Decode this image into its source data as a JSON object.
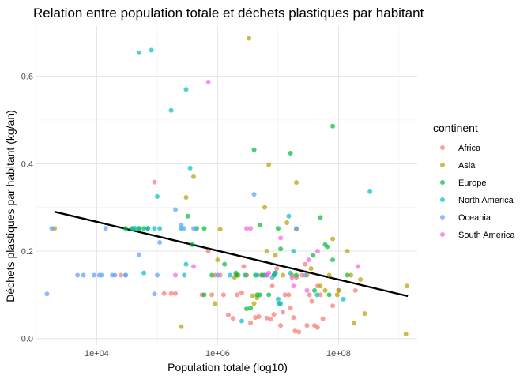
{
  "chart_data": {
    "type": "scatter",
    "title": "Relation entre population totale et déchets plastiques par habitant",
    "xlabel": "Population totale (log10)",
    "ylabel": "Déchets plastiques par habitant (kg/an)",
    "x_scale": "log10",
    "xlim": [
      1000,
      2000000000
    ],
    "ylim": [
      -0.015,
      0.715
    ],
    "x_ticks": [
      10000,
      1000000,
      100000000
    ],
    "x_tick_labels": [
      "1e+04",
      "1e+06",
      "1e+08"
    ],
    "y_ticks": [
      0.0,
      0.2,
      0.4,
      0.6
    ],
    "y_tick_labels": [
      "0.0",
      "0.2",
      "0.4",
      "0.6"
    ],
    "grid": true,
    "legend": {
      "title": "continent",
      "position": "right"
    },
    "series": [
      {
        "name": "Africa",
        "color": "#F8766D",
        "points": [
          [
            90000,
            0.358
          ],
          [
            130000,
            0.103
          ],
          [
            170000,
            0.103
          ],
          [
            550000,
            0.1
          ],
          [
            800000,
            0.1
          ],
          [
            1100000,
            0.145
          ],
          [
            1250000,
            0.1
          ],
          [
            1500000,
            0.054
          ],
          [
            1800000,
            0.046
          ],
          [
            2000000,
            0.145
          ],
          [
            2100000,
            0.1
          ],
          [
            2500000,
            0.105
          ],
          [
            3000000,
            0.145
          ],
          [
            3500000,
            0.036
          ],
          [
            4200000,
            0.048
          ],
          [
            4800000,
            0.05
          ],
          [
            5200000,
            0.145
          ],
          [
            6000000,
            0.145
          ],
          [
            6500000,
            0.047
          ],
          [
            7500000,
            0.044
          ],
          [
            8500000,
            0.055
          ],
          [
            9500000,
            0.16
          ],
          [
            11000000,
            0.03
          ],
          [
            12000000,
            0.06
          ],
          [
            13000000,
            0.1
          ],
          [
            15000000,
            0.1
          ],
          [
            16000000,
            0.07
          ],
          [
            18000000,
            0.048
          ],
          [
            19000000,
            0.017
          ],
          [
            20000000,
            0.14
          ],
          [
            22000000,
            0.015
          ],
          [
            25000000,
            0.145
          ],
          [
            28000000,
            0.17
          ],
          [
            30000000,
            0.03
          ],
          [
            33000000,
            0.1
          ],
          [
            36000000,
            0.085
          ],
          [
            40000000,
            0.03
          ],
          [
            45000000,
            0.025
          ],
          [
            50000000,
            0.1
          ],
          [
            55000000,
            0.045
          ],
          [
            80000000,
            0.075
          ],
          [
            100000000,
            0.11
          ],
          [
            190000000,
            0.11
          ],
          [
            25000,
            0.145
          ],
          [
            200000,
            0.103
          ],
          [
            700000,
            0.2
          ],
          [
            2700000,
            0.165
          ],
          [
            8000000,
            0.12
          ],
          [
            900000,
            0.145
          ],
          [
            45000000,
            0.12
          ]
        ]
      },
      {
        "name": "Asia",
        "color": "#B79F00",
        "points": [
          [
            2000,
            0.252
          ],
          [
            3300000,
            0.687
          ],
          [
            3800000,
            0.098
          ],
          [
            400000,
            0.37
          ],
          [
            300000,
            0.323
          ],
          [
            250000,
            0.027
          ],
          [
            7000000,
            0.398
          ],
          [
            1100000,
            0.25
          ],
          [
            20000000,
            0.357
          ],
          [
            6000000,
            0.3
          ],
          [
            14000000,
            0.265
          ],
          [
            80000000,
            0.228
          ],
          [
            1000000,
            0.18
          ],
          [
            2200000,
            0.145
          ],
          [
            3000000,
            0.145
          ],
          [
            4500000,
            0.093
          ],
          [
            5500000,
            0.145
          ],
          [
            6500000,
            0.2
          ],
          [
            8500000,
            0.145
          ],
          [
            12000000,
            0.145
          ],
          [
            17000000,
            0.145
          ],
          [
            30000000,
            0.145
          ],
          [
            35000000,
            0.16
          ],
          [
            50000000,
            0.12
          ],
          [
            60000000,
            0.11
          ],
          [
            70000000,
            0.145
          ],
          [
            95000000,
            0.1
          ],
          [
            140000000,
            0.2
          ],
          [
            160000000,
            0.145
          ],
          [
            230000000,
            0.135
          ],
          [
            270000000,
            0.057
          ],
          [
            1350000000,
            0.12
          ],
          [
            1300000000,
            0.01
          ],
          [
            180000000,
            0.035
          ],
          [
            900000,
            0.08
          ],
          [
            1900000,
            0.14
          ],
          [
            4000000,
            0.08
          ],
          [
            9000000,
            0.19
          ],
          [
            100000000,
            0.11
          ],
          [
            20000000,
            0.25
          ]
        ]
      },
      {
        "name": "Europe",
        "color": "#00BA38",
        "points": [
          [
            80000000,
            0.486
          ],
          [
            4000000,
            0.432
          ],
          [
            16000000,
            0.424
          ],
          [
            30000,
            0.252
          ],
          [
            38000,
            0.252
          ],
          [
            43000,
            0.252
          ],
          [
            50000,
            0.252
          ],
          [
            60000,
            0.252
          ],
          [
            70000,
            0.252
          ],
          [
            320000,
            0.28
          ],
          [
            450000,
            0.252
          ],
          [
            600000,
            0.252
          ],
          [
            5000000,
            0.26
          ],
          [
            10000000,
            0.252
          ],
          [
            50000000,
            0.277
          ],
          [
            60000000,
            0.215
          ],
          [
            65000000,
            0.21
          ],
          [
            38000000,
            0.19
          ],
          [
            11000000,
            0.205
          ],
          [
            9000000,
            0.15
          ],
          [
            5500000,
            0.145
          ],
          [
            4200000,
            0.145
          ],
          [
            2100000,
            0.145
          ],
          [
            1300000,
            0.17
          ],
          [
            2000000,
            0.15
          ],
          [
            3000000,
            0.068
          ],
          [
            3500000,
            0.07
          ],
          [
            4500000,
            0.1
          ],
          [
            7000000,
            0.1
          ],
          [
            8500000,
            0.145
          ],
          [
            10500000,
            0.08
          ],
          [
            20000000,
            0.145
          ],
          [
            40000000,
            0.11
          ],
          [
            70000000,
            0.1
          ],
          [
            80000000,
            0.18
          ],
          [
            140000000,
            0.145
          ],
          [
            600000,
            0.1
          ],
          [
            380000,
            0.215
          ],
          [
            800000,
            0.145
          ],
          [
            5000000,
            0.1
          ]
        ]
      },
      {
        "name": "North America",
        "color": "#00BFC4",
        "points": [
          [
            50000,
            0.654
          ],
          [
            80000,
            0.66
          ],
          [
            300000,
            0.57
          ],
          [
            170000,
            0.522
          ],
          [
            350000,
            0.39
          ],
          [
            330000000,
            0.336
          ],
          [
            100000,
            0.325
          ],
          [
            300000,
            0.17
          ],
          [
            60000,
            0.15
          ],
          [
            40000,
            0.252
          ],
          [
            50000,
            0.252
          ],
          [
            70000,
            0.252
          ],
          [
            90000,
            0.252
          ],
          [
            110000,
            0.252
          ],
          [
            15000000,
            0.28
          ],
          [
            4500000,
            0.145
          ],
          [
            6500000,
            0.145
          ],
          [
            10000000,
            0.09
          ],
          [
            11000000,
            0.08
          ],
          [
            9000000,
            0.15
          ],
          [
            2800000,
            0.145
          ],
          [
            16000000,
            0.15
          ],
          [
            44000000,
            0.1
          ],
          [
            120000000,
            0.09
          ],
          [
            1600000,
            0.145
          ],
          [
            250000,
            0.252
          ],
          [
            280000,
            0.145
          ],
          [
            2500000,
            0.04
          ],
          [
            18000000,
            0.2
          ],
          [
            6000000,
            0.145
          ]
        ]
      },
      {
        "name": "Oceania",
        "color": "#619CFF",
        "points": [
          [
            1500,
            0.102
          ],
          [
            1800,
            0.252
          ],
          [
            14000,
            0.252
          ],
          [
            11000,
            0.145
          ],
          [
            12000,
            0.145
          ],
          [
            18000,
            0.145
          ],
          [
            20000,
            0.145
          ],
          [
            30000,
            0.145
          ],
          [
            100000,
            0.145
          ],
          [
            110000,
            0.22
          ],
          [
            200000,
            0.295
          ],
          [
            250000,
            0.26
          ],
          [
            280000,
            0.252
          ],
          [
            400000,
            0.252
          ],
          [
            50000,
            0.192
          ],
          [
            30000,
            0.145
          ],
          [
            9000,
            0.145
          ],
          [
            4000000,
            0.33
          ],
          [
            8000000,
            0.14
          ],
          [
            1000000,
            0.145
          ],
          [
            20000000,
            0.252
          ],
          [
            28000000,
            0.145
          ],
          [
            90000,
            0.102
          ],
          [
            4800,
            0.145
          ],
          [
            6000,
            0.145
          ]
        ]
      },
      {
        "name": "South America",
        "color": "#F564E3",
        "points": [
          [
            700000,
            0.587
          ],
          [
            3000000,
            0.252
          ],
          [
            3500000,
            0.252
          ],
          [
            45000000,
            0.2
          ],
          [
            32000000,
            0.18
          ],
          [
            18000000,
            0.12
          ],
          [
            210000000,
            0.165
          ],
          [
            11000000,
            0.23
          ],
          [
            17000000,
            0.14
          ],
          [
            6500000,
            0.145
          ],
          [
            200000,
            0.145
          ],
          [
            400000,
            0.165
          ],
          [
            7000000,
            0.15
          ],
          [
            30000000,
            0.11
          ]
        ]
      }
    ],
    "trend_line": {
      "color": "#000000",
      "points": [
        [
          2000,
          0.29
        ],
        [
          1400000000,
          0.097
        ]
      ]
    }
  }
}
